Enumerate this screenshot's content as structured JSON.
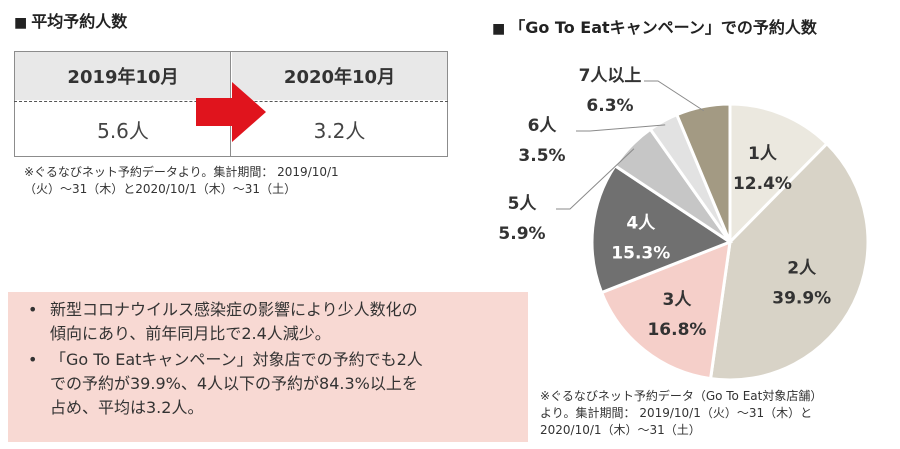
{
  "left_title": "平均予約人数",
  "right_title": "「Go To Eatキャンペーン」での予約人数",
  "comparison": {
    "headers": [
      "2019年10月",
      "2020年10月"
    ],
    "values": [
      "5.6人",
      "3.2人"
    ]
  },
  "note_left": [
    "※ぐるなびネット予約データより。集計期間： 2019/10/1",
    "（火）～31（木）と2020/10/1（木）～31（土）"
  ],
  "summary": [
    [
      "新型コロナウイルス感染症の影響により少人数化の",
      "傾向にあり、前年同月比で2.4人減少。"
    ],
    [
      "「Go To Eatキャンペーン」対象店での予約でも2人",
      "での予約が39.9%、4人以下の予約が84.3%以上を",
      "占め、平均は3.2人。"
    ]
  ],
  "note_right": [
    "※ぐるなびネット予約データ（Go To Eat対象店舗）",
    "より。集計期間： 2019/10/1（火）～31（木）と",
    "2020/10/1（木）～31（土）"
  ],
  "colors": {
    "arrow": "#e0141d",
    "summary_bg": "#f8d9d3",
    "table_header_bg": "#e8e8e8"
  },
  "chart_data": {
    "type": "pie",
    "title": "「Go To Eatキャンペーン」での予約人数",
    "start": "12 o'clock, clockwise",
    "slices": [
      {
        "label": "1人",
        "pct": "12.4%",
        "value": 12.4,
        "color": "#ebe8df",
        "text_color": "#333333"
      },
      {
        "label": "2人",
        "pct": "39.9%",
        "value": 39.9,
        "color": "#d8d3c7",
        "text_color": "#333333"
      },
      {
        "label": "3人",
        "pct": "16.8%",
        "value": 16.8,
        "color": "#f5cfc9",
        "text_color": "#333333"
      },
      {
        "label": "4人",
        "pct": "15.3%",
        "value": 15.3,
        "color": "#707070",
        "text_color": "#ffffff"
      },
      {
        "label": "5人",
        "pct": "5.9%",
        "value": 5.9,
        "color": "#c6c6c6",
        "text_color": "#333333"
      },
      {
        "label": "6人",
        "pct": "3.5%",
        "value": 3.5,
        "color": "#e2e2e2",
        "text_color": "#333333"
      },
      {
        "label": "7人以上",
        "pct": "6.3%",
        "value": 6.3,
        "color": "#a39a83",
        "text_color": "#333333"
      }
    ]
  }
}
